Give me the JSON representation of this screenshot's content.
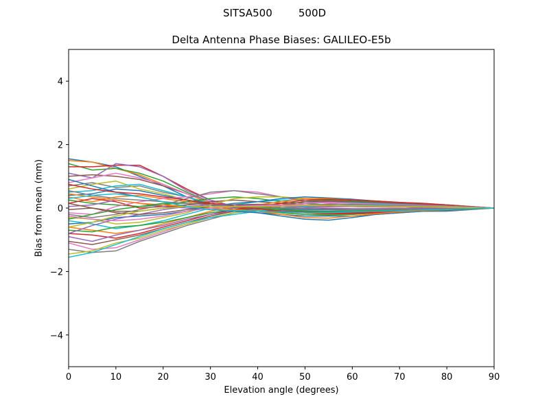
{
  "chart_data": {
    "type": "line",
    "suptitle": "SITSA500        500D",
    "title": "Delta Antenna Phase Biases: GALILEO-E5b",
    "xlabel": "Elevation angle (degrees)",
    "ylabel": "Bias from mean (mm)",
    "xlim": [
      0,
      90
    ],
    "ylim": [
      -5,
      5
    ],
    "xticks": [
      0,
      10,
      20,
      30,
      40,
      50,
      60,
      70,
      80,
      90
    ],
    "yticks": [
      -4,
      -2,
      0,
      2,
      4
    ],
    "ytick_labels": [
      "−4",
      "−2",
      "0",
      "2",
      "4"
    ],
    "grid": false,
    "legend": "none",
    "x": [
      0,
      5,
      10,
      15,
      20,
      25,
      30,
      35,
      40,
      45,
      50,
      55,
      60,
      65,
      70,
      75,
      80,
      85,
      90
    ],
    "colors": [
      "#1f77b4",
      "#ff7f0e",
      "#2ca02c",
      "#d62728",
      "#9467bd",
      "#8c564b",
      "#e377c2",
      "#7f7f7f",
      "#bcbd22",
      "#17becf"
    ],
    "series": [
      {
        "values": [
          1.55,
          1.45,
          1.3,
          1.0,
          0.7,
          0.35,
          0.1,
          -0.05,
          -0.15,
          -0.2,
          -0.25,
          -0.25,
          -0.25,
          -0.2,
          -0.15,
          -0.1,
          -0.1,
          -0.05,
          0.0
        ]
      },
      {
        "values": [
          1.5,
          1.45,
          1.25,
          1.05,
          0.75,
          0.45,
          0.15,
          0.0,
          -0.1,
          -0.15,
          -0.2,
          -0.2,
          -0.2,
          -0.15,
          -0.12,
          -0.1,
          -0.08,
          -0.04,
          0.0
        ]
      },
      {
        "values": [
          1.4,
          1.2,
          1.25,
          1.1,
          0.85,
          0.5,
          0.2,
          0.05,
          -0.05,
          -0.15,
          -0.2,
          -0.22,
          -0.2,
          -0.15,
          -0.12,
          -0.1,
          -0.07,
          -0.03,
          0.0
        ]
      },
      {
        "values": [
          1.3,
          1.3,
          1.35,
          1.35,
          1.0,
          0.6,
          0.25,
          0.05,
          -0.05,
          -0.12,
          -0.15,
          -0.18,
          -0.17,
          -0.15,
          -0.1,
          -0.08,
          -0.05,
          -0.02,
          0.0
        ]
      },
      {
        "values": [
          1.1,
          0.95,
          1.4,
          1.3,
          1.0,
          0.55,
          0.25,
          0.05,
          0.0,
          -0.08,
          -0.12,
          -0.15,
          -0.15,
          -0.12,
          -0.1,
          -0.08,
          -0.05,
          -0.02,
          0.0
        ]
      },
      {
        "values": [
          1.0,
          1.05,
          1.0,
          0.9,
          0.7,
          0.45,
          0.2,
          0.05,
          -0.05,
          -0.1,
          -0.12,
          -0.12,
          -0.1,
          -0.1,
          -0.08,
          -0.06,
          -0.04,
          -0.02,
          0.0
        ]
      },
      {
        "values": [
          0.8,
          0.95,
          1.1,
          0.95,
          0.75,
          0.45,
          0.2,
          0.05,
          0.0,
          -0.05,
          -0.1,
          -0.1,
          -0.1,
          -0.08,
          -0.06,
          -0.05,
          -0.03,
          -0.01,
          0.0
        ]
      },
      {
        "values": [
          0.7,
          0.8,
          0.65,
          0.7,
          0.5,
          0.35,
          0.15,
          0.05,
          -0.02,
          -0.05,
          -0.08,
          -0.1,
          -0.08,
          -0.06,
          -0.05,
          -0.04,
          -0.02,
          -0.01,
          0.0
        ]
      },
      {
        "values": [
          0.6,
          0.75,
          0.85,
          0.6,
          0.45,
          0.25,
          0.1,
          0.0,
          -0.05,
          -0.05,
          -0.05,
          -0.05,
          -0.05,
          -0.04,
          -0.03,
          -0.02,
          -0.02,
          -0.01,
          0.0
        ]
      },
      {
        "values": [
          0.5,
          0.55,
          0.7,
          0.75,
          0.55,
          0.35,
          0.15,
          0.05,
          0.0,
          -0.03,
          -0.05,
          -0.06,
          -0.06,
          -0.05,
          -0.04,
          -0.03,
          -0.02,
          -0.01,
          0.0
        ]
      },
      {
        "values": [
          0.4,
          0.45,
          0.6,
          0.55,
          0.4,
          0.25,
          0.1,
          0.02,
          -0.02,
          -0.03,
          -0.04,
          -0.05,
          -0.05,
          -0.04,
          -0.03,
          -0.02,
          -0.02,
          -0.01,
          0.0
        ]
      },
      {
        "values": [
          0.35,
          0.2,
          0.35,
          0.4,
          0.3,
          0.2,
          0.1,
          0.05,
          0.02,
          0.0,
          -0.02,
          -0.03,
          -0.03,
          -0.02,
          -0.02,
          -0.01,
          -0.01,
          0.0,
          0.0
        ]
      },
      {
        "values": [
          0.25,
          0.15,
          0.1,
          0.05,
          0.1,
          0.2,
          0.3,
          0.35,
          0.3,
          0.2,
          0.15,
          0.1,
          0.05,
          0.05,
          0.03,
          0.02,
          0.01,
          0.0,
          0.0
        ]
      },
      {
        "values": [
          0.15,
          0.3,
          0.2,
          0.0,
          0.05,
          0.1,
          0.15,
          0.1,
          0.05,
          0.0,
          -0.02,
          -0.03,
          -0.03,
          -0.02,
          -0.02,
          -0.01,
          -0.01,
          0.0,
          0.0
        ]
      },
      {
        "values": [
          0.05,
          0.1,
          0.25,
          0.15,
          0.05,
          0.0,
          -0.05,
          0.0,
          0.05,
          0.05,
          0.05,
          0.05,
          0.05,
          0.04,
          0.03,
          0.02,
          0.01,
          0.0,
          0.0
        ]
      },
      {
        "values": [
          -0.05,
          0.0,
          -0.1,
          -0.1,
          0.0,
          0.1,
          0.2,
          0.25,
          0.2,
          0.15,
          0.1,
          0.08,
          0.05,
          0.04,
          0.03,
          0.02,
          0.01,
          0.0,
          0.0
        ]
      },
      {
        "values": [
          -0.15,
          -0.2,
          0.05,
          0.2,
          0.3,
          0.35,
          0.45,
          0.55,
          0.5,
          0.35,
          0.2,
          0.15,
          0.1,
          0.08,
          0.05,
          0.04,
          0.02,
          0.01,
          0.0
        ]
      },
      {
        "values": [
          -0.2,
          -0.3,
          -0.2,
          -0.05,
          0.1,
          0.3,
          0.5,
          0.55,
          0.45,
          0.35,
          0.25,
          0.2,
          0.15,
          0.12,
          0.1,
          0.07,
          0.05,
          0.02,
          0.0
        ]
      },
      {
        "values": [
          -0.3,
          -0.35,
          -0.5,
          -0.45,
          -0.3,
          -0.15,
          0.1,
          0.3,
          0.35,
          0.35,
          0.3,
          0.25,
          0.2,
          0.15,
          0.12,
          0.1,
          0.06,
          0.03,
          0.0
        ]
      },
      {
        "values": [
          -0.4,
          -0.5,
          -0.65,
          -0.55,
          -0.4,
          -0.2,
          0.0,
          0.1,
          0.2,
          0.25,
          0.25,
          0.22,
          0.18,
          0.15,
          0.12,
          0.1,
          0.07,
          0.03,
          0.0
        ]
      },
      {
        "values": [
          -0.5,
          -0.45,
          -0.3,
          -0.25,
          -0.2,
          -0.1,
          0.05,
          0.15,
          0.2,
          0.3,
          0.35,
          0.32,
          0.28,
          0.22,
          0.18,
          0.14,
          0.1,
          0.05,
          0.0
        ]
      },
      {
        "values": [
          -0.6,
          -0.7,
          -0.8,
          -0.7,
          -0.5,
          -0.3,
          -0.1,
          0.05,
          0.1,
          0.2,
          0.3,
          0.3,
          0.25,
          0.22,
          0.18,
          0.15,
          0.1,
          0.05,
          0.0
        ]
      },
      {
        "values": [
          -0.7,
          -0.75,
          -0.6,
          -0.55,
          -0.45,
          -0.3,
          -0.15,
          -0.05,
          0.0,
          0.1,
          0.2,
          0.25,
          0.22,
          0.2,
          0.17,
          0.14,
          0.1,
          0.05,
          0.0
        ]
      },
      {
        "values": [
          -0.8,
          -0.85,
          -0.95,
          -0.8,
          -0.6,
          -0.4,
          -0.2,
          -0.05,
          0.05,
          0.15,
          0.25,
          0.28,
          0.25,
          0.22,
          0.18,
          0.15,
          0.1,
          0.05,
          0.0
        ]
      },
      {
        "values": [
          -0.9,
          -1.05,
          -0.85,
          -0.7,
          -0.55,
          -0.35,
          -0.2,
          -0.1,
          -0.05,
          0.05,
          0.15,
          0.2,
          0.2,
          0.18,
          0.15,
          0.12,
          0.08,
          0.04,
          0.0
        ]
      },
      {
        "values": [
          -1.05,
          -1.15,
          -1.0,
          -0.85,
          -0.65,
          -0.45,
          -0.25,
          -0.1,
          0.0,
          0.1,
          0.2,
          0.22,
          0.2,
          0.18,
          0.15,
          0.12,
          0.08,
          0.04,
          0.0
        ]
      },
      {
        "values": [
          -1.1,
          -1.3,
          -1.25,
          -1.0,
          -0.75,
          -0.5,
          -0.3,
          -0.15,
          -0.05,
          0.05,
          0.15,
          0.18,
          0.15,
          0.12,
          0.1,
          0.08,
          0.06,
          0.03,
          0.0
        ]
      },
      {
        "values": [
          -1.3,
          -1.4,
          -1.35,
          -1.05,
          -0.8,
          -0.55,
          -0.35,
          -0.15,
          -0.05,
          0.05,
          0.1,
          0.12,
          0.12,
          0.1,
          0.08,
          0.06,
          0.04,
          0.02,
          0.0
        ]
      },
      {
        "values": [
          -1.45,
          -1.35,
          -1.1,
          -0.95,
          -0.7,
          -0.5,
          -0.3,
          -0.15,
          -0.08,
          0.0,
          0.05,
          0.08,
          0.08,
          0.07,
          0.05,
          0.04,
          0.03,
          0.01,
          0.0
        ]
      },
      {
        "values": [
          -1.55,
          -1.4,
          -1.15,
          -0.9,
          -0.65,
          -0.45,
          -0.3,
          -0.2,
          -0.1,
          0.0,
          0.05,
          0.08,
          0.08,
          0.07,
          0.05,
          0.04,
          0.03,
          0.01,
          0.0
        ]
      },
      {
        "values": [
          0.9,
          0.7,
          0.5,
          0.35,
          0.2,
          0.05,
          -0.05,
          -0.1,
          -0.15,
          -0.25,
          -0.35,
          -0.38,
          -0.3,
          -0.2,
          -0.15,
          -0.1,
          -0.07,
          -0.03,
          0.0
        ]
      },
      {
        "values": [
          0.45,
          0.35,
          0.25,
          0.15,
          0.1,
          0.05,
          0.0,
          -0.05,
          -0.1,
          -0.2,
          -0.3,
          -0.32,
          -0.25,
          -0.18,
          -0.12,
          -0.08,
          -0.05,
          -0.02,
          0.0
        ]
      },
      {
        "values": [
          -0.35,
          -0.2,
          -0.05,
          0.05,
          0.15,
          0.15,
          0.1,
          0.05,
          0.0,
          -0.05,
          -0.1,
          -0.12,
          -0.1,
          -0.08,
          -0.06,
          -0.04,
          -0.03,
          -0.01,
          0.0
        ]
      },
      {
        "values": [
          0.75,
          0.6,
          0.5,
          0.45,
          0.35,
          0.25,
          0.15,
          0.05,
          -0.02,
          -0.1,
          -0.15,
          -0.18,
          -0.15,
          -0.12,
          -0.08,
          -0.06,
          -0.04,
          -0.02,
          0.0
        ]
      },
      {
        "values": [
          -0.8,
          -0.55,
          -0.35,
          -0.2,
          -0.05,
          0.05,
          0.1,
          0.1,
          0.08,
          0.05,
          0.02,
          0.0,
          -0.02,
          -0.02,
          -0.02,
          -0.01,
          -0.01,
          0.0,
          0.0
        ]
      },
      {
        "values": [
          0.15,
          0.0,
          -0.15,
          -0.2,
          -0.15,
          -0.05,
          0.05,
          0.1,
          0.12,
          0.1,
          0.08,
          0.06,
          0.05,
          0.04,
          0.03,
          0.02,
          0.01,
          0.0,
          0.0
        ]
      },
      {
        "values": [
          -0.25,
          -0.35,
          -0.4,
          -0.35,
          -0.25,
          -0.1,
          0.0,
          0.05,
          0.08,
          0.1,
          0.1,
          0.08,
          0.06,
          0.05,
          0.04,
          0.03,
          0.02,
          0.01,
          0.0
        ]
      },
      {
        "values": [
          0.55,
          0.4,
          0.3,
          0.25,
          0.2,
          0.15,
          0.1,
          0.05,
          0.02,
          0.0,
          -0.02,
          -0.04,
          -0.05,
          -0.05,
          -0.04,
          -0.03,
          -0.02,
          -0.01,
          0.0
        ]
      },
      {
        "values": [
          -0.6,
          -0.45,
          -0.25,
          -0.1,
          0.0,
          0.05,
          0.05,
          0.05,
          0.05,
          0.06,
          0.08,
          0.08,
          0.07,
          0.06,
          0.05,
          0.04,
          0.03,
          0.01,
          0.0
        ]
      },
      {
        "values": [
          0.3,
          0.4,
          0.45,
          0.35,
          0.2,
          0.05,
          -0.05,
          -0.08,
          -0.1,
          -0.12,
          -0.15,
          -0.15,
          -0.12,
          -0.1,
          -0.08,
          -0.06,
          -0.04,
          -0.02,
          0.0
        ]
      }
    ]
  }
}
